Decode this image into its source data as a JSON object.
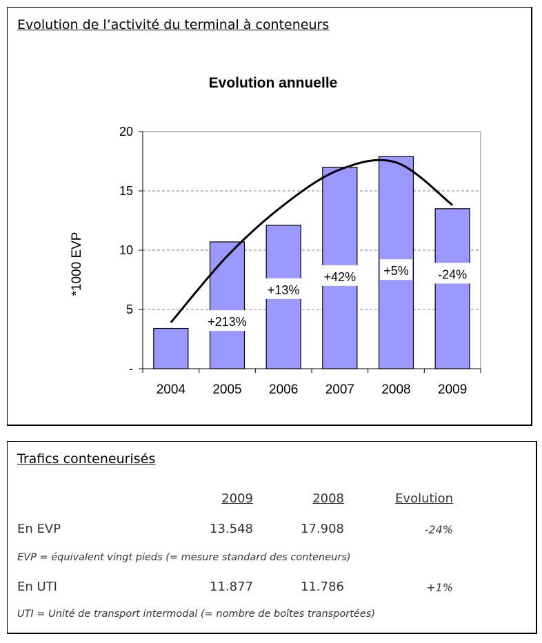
{
  "top_panel": {
    "title": "Evolution de l’activité du terminal à conteneurs"
  },
  "chart_data": {
    "type": "bar",
    "title": "Evolution annuelle",
    "ylabel": "*1000 EVP",
    "xlabel": "",
    "categories": [
      "2004",
      "2005",
      "2006",
      "2007",
      "2008",
      "2009"
    ],
    "values": [
      3.4,
      10.7,
      12.1,
      17.0,
      17.9,
      13.5
    ],
    "ylim": [
      0,
      20
    ],
    "yticks": [
      0,
      5,
      10,
      15,
      20
    ],
    "ytick_labels": [
      "-",
      "5",
      "10",
      "15",
      "20"
    ],
    "grid": "horizontal dashed",
    "bar_color": "#9999ff",
    "annotations": [
      {
        "category": "2005",
        "label": "+213%",
        "y": 4
      },
      {
        "category": "2006",
        "label": "+13%",
        "y": 6.7
      },
      {
        "category": "2007",
        "label": "+42%",
        "y": 7.8
      },
      {
        "category": "2008",
        "label": "+5%",
        "y": 8.3
      },
      {
        "category": "2009",
        "label": "-24%",
        "y": 8.0
      }
    ],
    "trend_line": {
      "x": [
        "2004",
        "2005",
        "2006",
        "2007",
        "2008",
        "2009"
      ],
      "y": [
        3.9,
        9.5,
        13.8,
        16.8,
        17.4,
        13.8
      ]
    }
  },
  "table": {
    "title": "Trafics conteneurisés",
    "headers": {
      "col1": "2009",
      "col2": "2008",
      "col3": "Evolution"
    },
    "rows": [
      {
        "label": "En EVP",
        "v2009": "13.548",
        "v2008": "17.908",
        "evolution": "-24%",
        "note": "EVP = équivalent vingt pieds (= mesure standard des conteneurs)"
      },
      {
        "label": "En UTI",
        "v2009": "11.877",
        "v2008": "11.786",
        "evolution": "+1%",
        "note": "UTI = Unité de transport intermodal (= nombre de boîtes transportées)"
      }
    ]
  }
}
